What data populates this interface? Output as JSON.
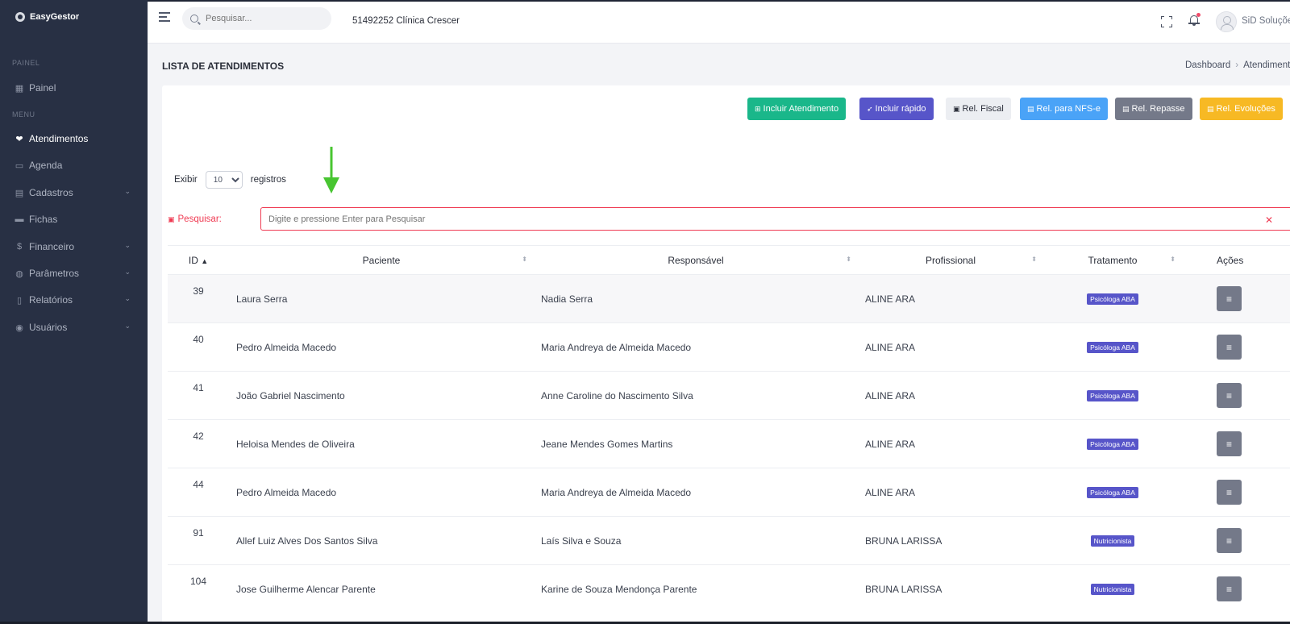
{
  "app": {
    "name": "EasyGestor"
  },
  "sidebar": {
    "section_painel": "PAINEL",
    "section_menu": "MENU",
    "items": [
      {
        "label": "Painel",
        "icon": "dashboard-icon",
        "has_chevron": false
      },
      {
        "label": "Atendimentos",
        "icon": "heart-hand-icon",
        "has_chevron": false,
        "active": true
      },
      {
        "label": "Agenda",
        "icon": "calendar-icon",
        "has_chevron": false
      },
      {
        "label": "Cadastros",
        "icon": "folder-icon",
        "has_chevron": true
      },
      {
        "label": "Fichas",
        "icon": "book-icon",
        "has_chevron": false
      },
      {
        "label": "Financeiro",
        "icon": "money-icon",
        "has_chevron": true
      },
      {
        "label": "Parâmetros",
        "icon": "globe-icon",
        "has_chevron": true
      },
      {
        "label": "Relatórios",
        "icon": "report-icon",
        "has_chevron": true
      },
      {
        "label": "Usuários",
        "icon": "user-circle-icon",
        "has_chevron": true
      }
    ]
  },
  "topbar": {
    "search_placeholder": "Pesquisar...",
    "clinic": "51492252 Clínica Crescer",
    "user_name": "SiD Soluções"
  },
  "page": {
    "title": "LISTA DE ATENDIMENTOS",
    "breadcrumb": [
      "Dashboard",
      "Atendimentos"
    ]
  },
  "toolbar": {
    "buttons": [
      {
        "label": "Incluir Atendimento",
        "color": "#1ab78a",
        "icon": "plus-square-icon"
      },
      {
        "label": "Incluir rápido",
        "color": "#5755c9",
        "icon": "rocket-icon"
      },
      {
        "label": "Rel. Fiscal",
        "color": "#eceef2",
        "icon": "pdf-icon"
      },
      {
        "label": "Rel. para NFS-e",
        "color": "#4aa3f7",
        "icon": "file-icon"
      },
      {
        "label": "Rel. Repasse",
        "color": "#747989",
        "icon": "file-icon"
      },
      {
        "label": "Rel. Evoluções",
        "color": "#f7b924",
        "icon": "file-icon"
      }
    ]
  },
  "length": {
    "prefix": "Exibir",
    "value": "10",
    "suffix": "registros"
  },
  "search": {
    "label": "Pesquisar:",
    "placeholder": "Digite e pressione Enter para Pesquisar",
    "clear": "✕"
  },
  "annotation_color": "#48c531",
  "table": {
    "columns": [
      "ID",
      "Paciente",
      "Responsável",
      "Profissional",
      "Tratamento",
      "Ações"
    ],
    "rows": [
      {
        "id": "39",
        "paciente": "Laura Serra",
        "responsavel": "Nadia Serra",
        "profissional": "ALINE ARA",
        "tratamento": "Psicóloga ABA"
      },
      {
        "id": "40",
        "paciente": "Pedro Almeida Macedo",
        "responsavel": "Maria Andreya de Almeida Macedo",
        "profissional": "ALINE ARA",
        "tratamento": "Psicóloga ABA"
      },
      {
        "id": "41",
        "paciente": "João Gabriel Nascimento",
        "responsavel": "Anne Caroline do Nascimento Silva",
        "profissional": "ALINE ARA",
        "tratamento": "Psicóloga ABA"
      },
      {
        "id": "42",
        "paciente": "Heloisa Mendes de Oliveira",
        "responsavel": "Jeane Mendes Gomes Martins",
        "profissional": "ALINE ARA",
        "tratamento": "Psicóloga ABA"
      },
      {
        "id": "44",
        "paciente": "Pedro Almeida Macedo",
        "responsavel": "Maria Andreya de Almeida Macedo",
        "profissional": "ALINE ARA",
        "tratamento": "Psicóloga ABA"
      },
      {
        "id": "91",
        "paciente": "Allef Luiz Alves Dos Santos Silva",
        "responsavel": "Laís Silva e Souza",
        "profissional": "BRUNA LARISSA",
        "tratamento": "Nutricionista"
      },
      {
        "id": "104",
        "paciente": "Jose Guilherme Alencar Parente",
        "responsavel": "Karine de Souza Mendonça Parente",
        "profissional": "BRUNA LARISSA",
        "tratamento": "Nutricionista"
      }
    ]
  }
}
